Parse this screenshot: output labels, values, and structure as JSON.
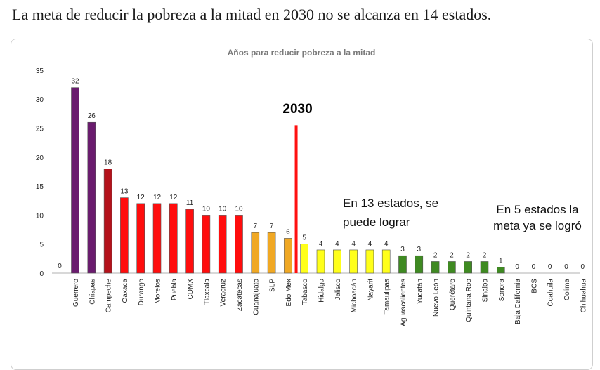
{
  "headline": "La meta de reducir la pobreza a la mitad en 2030 no se alcanza en 14 estados.",
  "chart_data": {
    "type": "bar",
    "title": "Años para reducir pobreza a la mitad",
    "xlabel": "",
    "ylabel": "",
    "ylim": [
      0,
      35
    ],
    "yticks": [
      0,
      5,
      10,
      15,
      20,
      25,
      30,
      35
    ],
    "grid": false,
    "categories": [
      "Guerrero",
      "Chiapas",
      "Campeche",
      "Oaxaca",
      "Durango",
      "Morelos",
      "Puebla",
      "CDMX",
      "Tlaxcala",
      "Veracruz",
      "Zacatecas",
      "Guanajuato",
      "SLP",
      "Edo Mex",
      "Tabasco",
      "Hidalgo",
      "Jalisco",
      "Michoacán",
      "Nayarit",
      "Tamaulipas",
      "Aguascalientes",
      "Yucatán",
      "Nuevo León",
      "Querétaro",
      "Quintana Roo",
      "Sinaloa",
      "Sonora",
      "Baja California",
      "BCS",
      "Coahuila",
      "Colima",
      "Chihuahua"
    ],
    "values": [
      32,
      26,
      18,
      13,
      12,
      12,
      12,
      11,
      10,
      10,
      10,
      7,
      7,
      6,
      5,
      4,
      4,
      4,
      4,
      4,
      3,
      3,
      2,
      2,
      2,
      2,
      1,
      0,
      0,
      0,
      0,
      0
    ],
    "value_labels": [
      "32",
      "26",
      "18",
      "13",
      "12",
      "12",
      "12",
      "11",
      "10",
      "10",
      "10",
      "7",
      "7",
      "6",
      "5",
      "4",
      "4",
      "4",
      "4",
      "4",
      "3",
      "3",
      "2",
      "2",
      "2",
      "2",
      "1",
      "0",
      "0",
      "0",
      "0",
      "0"
    ],
    "leading_value_label": "0",
    "colors": [
      "#6a1b6e",
      "#6a1b6e",
      "#b4121b",
      "#ff0d0d",
      "#ff0d0d",
      "#ff0d0d",
      "#ff0d0d",
      "#ff0d0d",
      "#ff0d0d",
      "#ff0d0d",
      "#ff0d0d",
      "#f0a824",
      "#f0a824",
      "#f0a824",
      "#ffff1a",
      "#ffff1a",
      "#ffff1a",
      "#ffff1a",
      "#ffff1a",
      "#ffff1a",
      "#3f8a22",
      "#3f8a22",
      "#3f8a22",
      "#3f8a22",
      "#3f8a22",
      "#3f8a22",
      "#3f8a22",
      "#3f8a22",
      "#3f8a22",
      "#3f8a22",
      "#3f8a22",
      "#3f8a22"
    ],
    "reference_line": {
      "label": "2030",
      "value": 25.5,
      "color": "#ff1010",
      "after_category_index": 13
    },
    "annotations": [
      {
        "lines": [
          "En  13 estados, se",
          "puede lograr"
        ]
      },
      {
        "lines": [
          "En 5 estados la",
          "meta ya se logró"
        ]
      }
    ]
  }
}
